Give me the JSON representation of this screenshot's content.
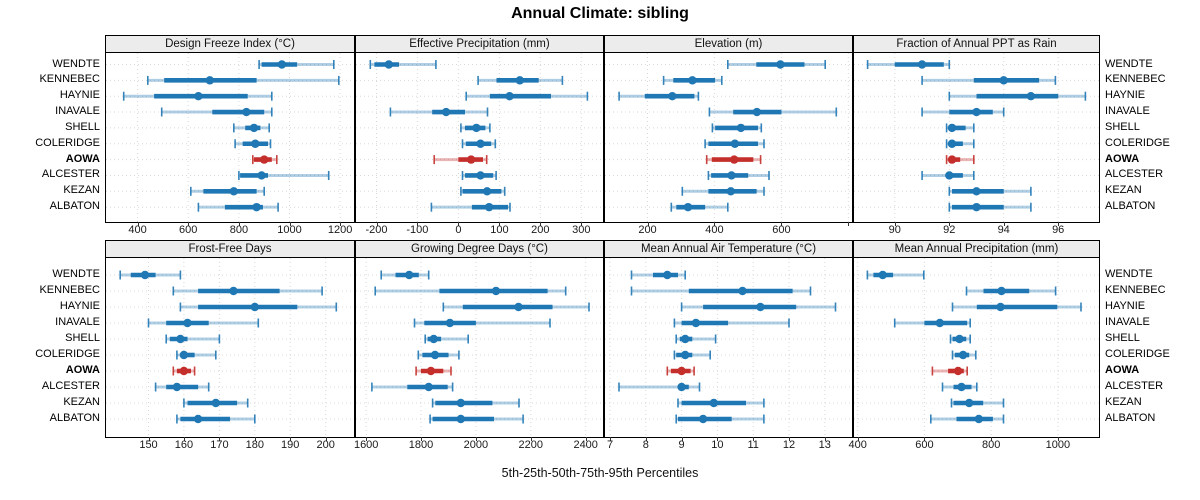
{
  "title": "Annual Climate: sibling",
  "footer": "5th-25th-50th-75th-95th Percentiles",
  "colors": {
    "series": "#1f77b4",
    "highlight": "#c42f2c",
    "grid": "#d8d8d8",
    "strip_bg": "#ececec",
    "border": "#000000"
  },
  "chart_data": {
    "type": "scatter",
    "subtype": "dot-plot-with-percentile-intervals",
    "percentiles": [
      "5th",
      "25th",
      "50th",
      "75th",
      "95th"
    ],
    "legend_note": "thick segment = 25th-75th, thin capped segment = 5th-95th, dot = median",
    "sites": [
      "WENDTE",
      "KENNEBEC",
      "HAYNIE",
      "INAVALE",
      "SHELL",
      "COLERIDGE",
      "AOWA",
      "ALCESTER",
      "KEZAN",
      "ALBATON"
    ],
    "highlight_site": "AOWA",
    "grid": true,
    "panels": [
      {
        "title": "Design Freeze Index (°C)",
        "row": 0,
        "col": 0,
        "xlim": [
          275,
          1255
        ],
        "ticks": [
          400,
          600,
          800,
          1000,
          1200
        ],
        "unlabeled_ticks": [],
        "values": [
          [
            880,
            890,
            970,
            1030,
            1175
          ],
          [
            440,
            505,
            685,
            870,
            1195
          ],
          [
            345,
            465,
            640,
            835,
            930
          ],
          [
            495,
            695,
            830,
            900,
            930
          ],
          [
            780,
            825,
            860,
            885,
            920
          ],
          [
            785,
            815,
            865,
            915,
            925
          ],
          [
            855,
            860,
            900,
            930,
            950
          ],
          [
            800,
            805,
            890,
            915,
            1155
          ],
          [
            610,
            660,
            780,
            870,
            900
          ],
          [
            640,
            745,
            870,
            895,
            955
          ]
        ]
      },
      {
        "title": "Effective Precipitation (mm)",
        "row": 0,
        "col": 1,
        "xlim": [
          -250,
          353
        ],
        "ticks": [
          -200,
          -100,
          0,
          100,
          200,
          300
        ],
        "unlabeled_ticks": [],
        "values": [
          [
            -215,
            -205,
            -170,
            -145,
            -55
          ],
          [
            48,
            93,
            150,
            196,
            254
          ],
          [
            19,
            77,
            125,
            226,
            315
          ],
          [
            -166,
            -64,
            -30,
            16,
            71
          ],
          [
            6,
            16,
            44,
            66,
            77
          ],
          [
            10,
            18,
            54,
            80,
            90
          ],
          [
            -59,
            0,
            31,
            60,
            69
          ],
          [
            10,
            16,
            54,
            85,
            92
          ],
          [
            6,
            10,
            70,
            105,
            113
          ],
          [
            -66,
            33,
            75,
            121,
            126
          ]
        ]
      },
      {
        "title": "Elevation (m)",
        "row": 0,
        "col": 2,
        "xlim": [
          73,
          811
        ],
        "ticks": [
          200,
          400,
          600
        ],
        "unlabeled_ticks": [
          800
        ],
        "values": [
          [
            440,
            525,
            597,
            669,
            731
          ],
          [
            248,
            277,
            334,
            402,
            422
          ],
          [
            115,
            192,
            274,
            340,
            352
          ],
          [
            385,
            456,
            527,
            600,
            764
          ],
          [
            394,
            402,
            479,
            530,
            540
          ],
          [
            372,
            382,
            461,
            530,
            548
          ],
          [
            377,
            392,
            459,
            516,
            538
          ],
          [
            382,
            390,
            451,
            501,
            563
          ],
          [
            304,
            382,
            449,
            526,
            548
          ],
          [
            271,
            286,
            321,
            372,
            440
          ]
        ]
      },
      {
        "title": "Fraction of Annual PPT as Rain",
        "row": 0,
        "col": 3,
        "xlim": [
          88.5,
          97.5
        ],
        "ticks": [
          90,
          92,
          94,
          96
        ],
        "unlabeled_ticks": [],
        "values": [
          [
            89.0,
            90.0,
            91.0,
            91.8,
            92.0
          ],
          [
            91.0,
            92.9,
            94.0,
            95.3,
            95.9
          ],
          [
            92.0,
            93.0,
            95.0,
            96.0,
            97.0
          ],
          [
            91.0,
            92.0,
            93.0,
            93.6,
            94.0
          ],
          [
            91.9,
            92.0,
            92.1,
            92.6,
            92.9
          ],
          [
            91.9,
            92.0,
            92.1,
            92.5,
            92.9
          ],
          [
            91.9,
            92.0,
            92.1,
            92.4,
            92.9
          ],
          [
            91.0,
            91.9,
            92.0,
            92.5,
            92.9
          ],
          [
            92.0,
            92.1,
            93.0,
            94.0,
            95.0
          ],
          [
            92.0,
            92.1,
            93.0,
            94.0,
            95.0
          ]
        ]
      },
      {
        "title": "Frost-Free Days",
        "row": 1,
        "col": 0,
        "xlim": [
          138,
          208
        ],
        "ticks": [
          150,
          160,
          170,
          180,
          190,
          200
        ],
        "unlabeled_ticks": [],
        "values": [
          [
            142,
            145,
            149,
            152,
            159
          ],
          [
            157,
            164,
            174,
            187,
            199
          ],
          [
            159,
            164,
            180,
            192,
            203
          ],
          [
            150,
            155,
            161,
            167,
            181
          ],
          [
            155,
            156,
            159,
            161,
            170
          ],
          [
            158,
            159,
            160,
            163,
            169
          ],
          [
            157,
            158,
            160,
            162,
            163
          ],
          [
            152,
            155,
            158,
            164,
            167
          ],
          [
            160,
            161,
            169,
            175,
            178
          ],
          [
            158,
            159,
            164,
            173,
            180
          ]
        ]
      },
      {
        "title": "Growing Degree Days (°C)",
        "row": 1,
        "col": 1,
        "xlim": [
          1563,
          2463
        ],
        "ticks": [
          1600,
          1800,
          2000,
          2200,
          2400
        ],
        "unlabeled_ticks": [],
        "values": [
          [
            1655,
            1707,
            1757,
            1792,
            1828
          ],
          [
            1633,
            1867,
            2073,
            2261,
            2327
          ],
          [
            1881,
            1952,
            2155,
            2279,
            2412
          ],
          [
            1776,
            1812,
            1905,
            2000,
            2270
          ],
          [
            1815,
            1824,
            1846,
            1873,
            1972
          ],
          [
            1790,
            1805,
            1851,
            1900,
            1938
          ],
          [
            1782,
            1800,
            1836,
            1881,
            1909
          ],
          [
            1621,
            1750,
            1828,
            1897,
            1915
          ],
          [
            1842,
            1852,
            1945,
            2060,
            2157
          ],
          [
            1833,
            1842,
            1945,
            2066,
            2172
          ]
        ]
      },
      {
        "title": "Mean Annual Air Temperature (°C)",
        "row": 1,
        "col": 2,
        "xlim": [
          6.86,
          13.76
        ],
        "ticks": [
          7,
          8,
          9,
          10,
          11,
          12,
          13
        ],
        "unlabeled_ticks": [],
        "values": [
          [
            7.6,
            8.2,
            8.6,
            8.9,
            9.1
          ],
          [
            7.6,
            9.2,
            10.7,
            12.1,
            12.6
          ],
          [
            9.0,
            9.6,
            11.2,
            12.2,
            13.3
          ],
          [
            8.8,
            9.0,
            9.4,
            10.3,
            12.0
          ],
          [
            8.85,
            8.95,
            9.1,
            9.3,
            9.95
          ],
          [
            8.8,
            8.85,
            9.1,
            9.3,
            9.8
          ],
          [
            8.6,
            8.7,
            9.0,
            9.25,
            9.35
          ],
          [
            7.25,
            8.9,
            9.0,
            9.2,
            9.5
          ],
          [
            8.9,
            9.0,
            9.9,
            10.8,
            11.3
          ],
          [
            8.85,
            8.9,
            9.6,
            10.4,
            11.3
          ]
        ]
      },
      {
        "title": "Mean Annual Precipitation (mm)",
        "row": 1,
        "col": 3,
        "xlim": [
          389,
          1123
        ],
        "ticks": [
          400,
          600,
          800,
          1000
        ],
        "unlabeled_ticks": [],
        "values": [
          [
            429,
            447,
            475,
            506,
            598
          ],
          [
            726,
            777,
            831,
            914,
            993
          ],
          [
            684,
            757,
            828,
            998,
            1069
          ],
          [
            511,
            600,
            646,
            728,
            737
          ],
          [
            678,
            684,
            705,
            725,
            737
          ],
          [
            684,
            691,
            716,
            734,
            754
          ],
          [
            624,
            671,
            701,
            718,
            728
          ],
          [
            654,
            687,
            711,
            741,
            757
          ],
          [
            681,
            687,
            734,
            776,
            837
          ],
          [
            619,
            696,
            763,
            805,
            837
          ]
        ]
      }
    ]
  }
}
